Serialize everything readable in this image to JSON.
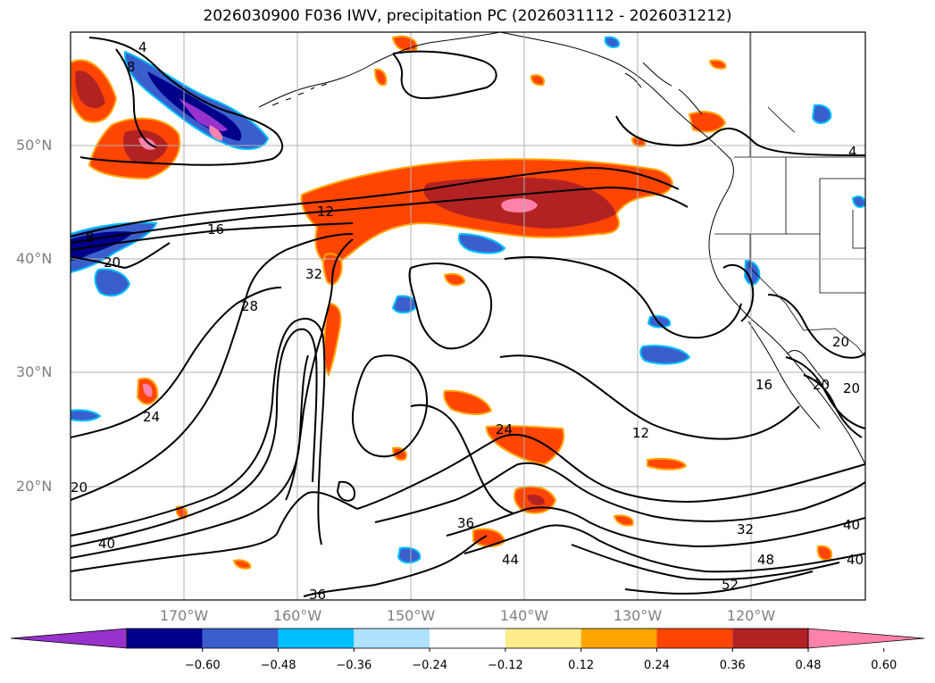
{
  "title": "2026030900 F036 IWV, precipitation PC (2026031112 - 2026031212)",
  "lat_labels": [
    {
      "text": "50°N",
      "lat": 50
    },
    {
      "text": "40°N",
      "lat": 40
    },
    {
      "text": "30°N",
      "lat": 30
    },
    {
      "text": "20°N",
      "lat": 20
    }
  ],
  "lon_labels": [
    {
      "text": "170°W",
      "lon": -170
    },
    {
      "text": "160°W",
      "lon": -160
    },
    {
      "text": "150°W",
      "lon": -150
    },
    {
      "text": "140°W",
      "lon": -140
    },
    {
      "text": "130°W",
      "lon": -130
    },
    {
      "text": "120°W",
      "lon": -120
    }
  ],
  "colorbar": {
    "colors": [
      "#9932cc",
      "#00008b",
      "#3a5fcd",
      "#00bfff",
      "#b0e2ff",
      "#ffffff",
      "#ffec8b",
      "#ffa500",
      "#ff4500",
      "#b22222",
      "#ff82ab"
    ],
    "tick_labels": [
      "−0.60",
      "−0.48",
      "−0.36",
      "−0.24",
      "−0.12",
      "0.12",
      "0.24",
      "0.36",
      "0.48",
      "0.60"
    ]
  },
  "contour_labels": [
    "4",
    "8",
    "16",
    "12",
    "8",
    "20",
    "28",
    "32",
    "24",
    "20",
    "40",
    "36",
    "36",
    "44",
    "24",
    "12",
    "32",
    "40",
    "48",
    "52",
    "40",
    "20",
    "16",
    "20",
    "4",
    "20"
  ]
}
